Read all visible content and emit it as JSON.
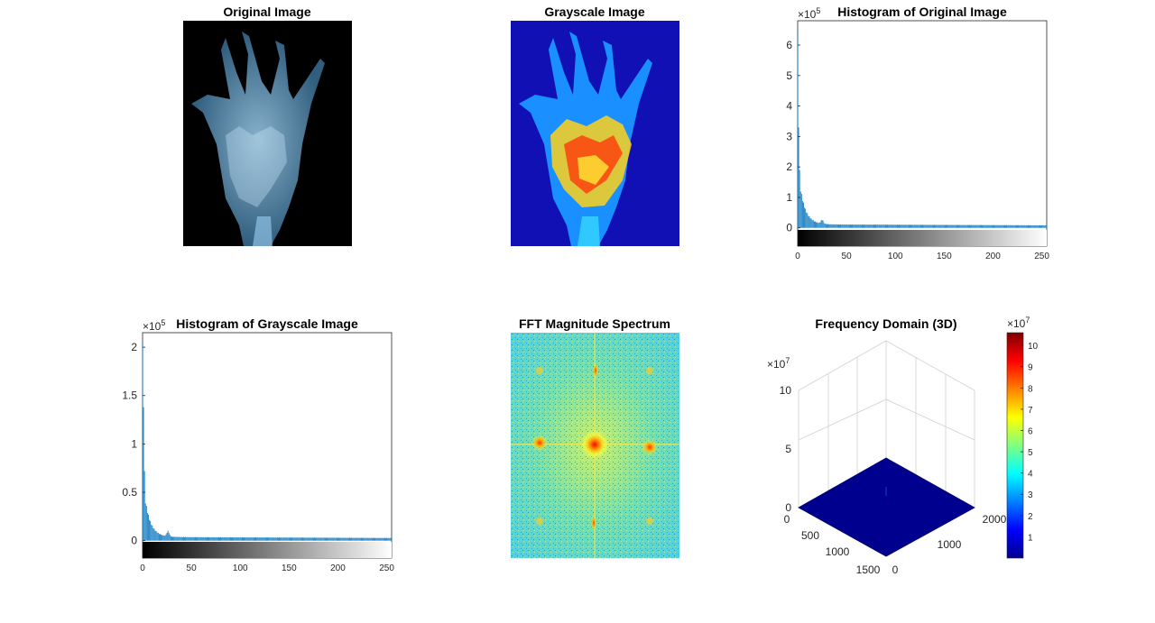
{
  "chart_data": [
    {
      "type": "image",
      "title": "Original Image",
      "subject": "x-ray-hand"
    },
    {
      "type": "image",
      "title": "Grayscale Image",
      "colormap": "jet",
      "subject": "x-ray-hand"
    },
    {
      "type": "bar",
      "title": "Histogram of Original Image",
      "xlim": [
        0,
        255
      ],
      "ylim": [
        -60000,
        680000
      ],
      "xticks": [
        "0",
        "50",
        "100",
        "150",
        "200",
        "250"
      ],
      "yticks": [
        "0",
        "1",
        "2",
        "3",
        "4",
        "5",
        "6"
      ],
      "yticks_values": [
        0,
        100000,
        200000,
        300000,
        400000,
        500000,
        600000
      ],
      "y_exponent": "5",
      "peaks": [
        {
          "x": 0,
          "y": 640000
        },
        {
          "x": 1,
          "y": 330000
        },
        {
          "x": 2,
          "y": 190000
        }
      ],
      "decay_start": 130000,
      "tail_level": 12000,
      "bump": {
        "x": 25,
        "y": 42000
      },
      "colorbar": "gray"
    },
    {
      "type": "bar",
      "title": "Histogram of Grayscale Image",
      "xlim": [
        0,
        255
      ],
      "ylim": [
        -18000,
        215000
      ],
      "xticks": [
        "0",
        "50",
        "100",
        "150",
        "200",
        "250"
      ],
      "yticks": [
        "0",
        "0.5",
        "1",
        "1.5",
        "2"
      ],
      "yticks_values": [
        0,
        50000,
        100000,
        150000,
        200000
      ],
      "y_exponent": "5",
      "peaks": [
        {
          "x": 0,
          "y": 205000
        },
        {
          "x": 1,
          "y": 138000
        },
        {
          "x": 2,
          "y": 72000
        }
      ],
      "decay_start": 42000,
      "tail_level": 4000,
      "bump": {
        "x": 26,
        "y": 17000
      },
      "colorbar": "gray"
    },
    {
      "type": "image",
      "title": "FFT Magnitude Spectrum",
      "colormap": "jet"
    },
    {
      "type": "surface",
      "title": "Frequency Domain (3D)",
      "zticks": [
        "0",
        "5",
        "10"
      ],
      "zticks_values": [
        0,
        50000000,
        100000000
      ],
      "z_exponent": "7",
      "xticks": [
        "0",
        "500",
        "1000",
        "1500"
      ],
      "yticks": [
        "0",
        "1000",
        "2000"
      ],
      "colorbar": {
        "colormap": "jet",
        "ticks": [
          "1",
          "2",
          "3",
          "4",
          "5",
          "6",
          "7",
          "8",
          "9",
          "10"
        ],
        "range": [
          0,
          10.6
        ],
        "exponent": "7"
      }
    }
  ]
}
